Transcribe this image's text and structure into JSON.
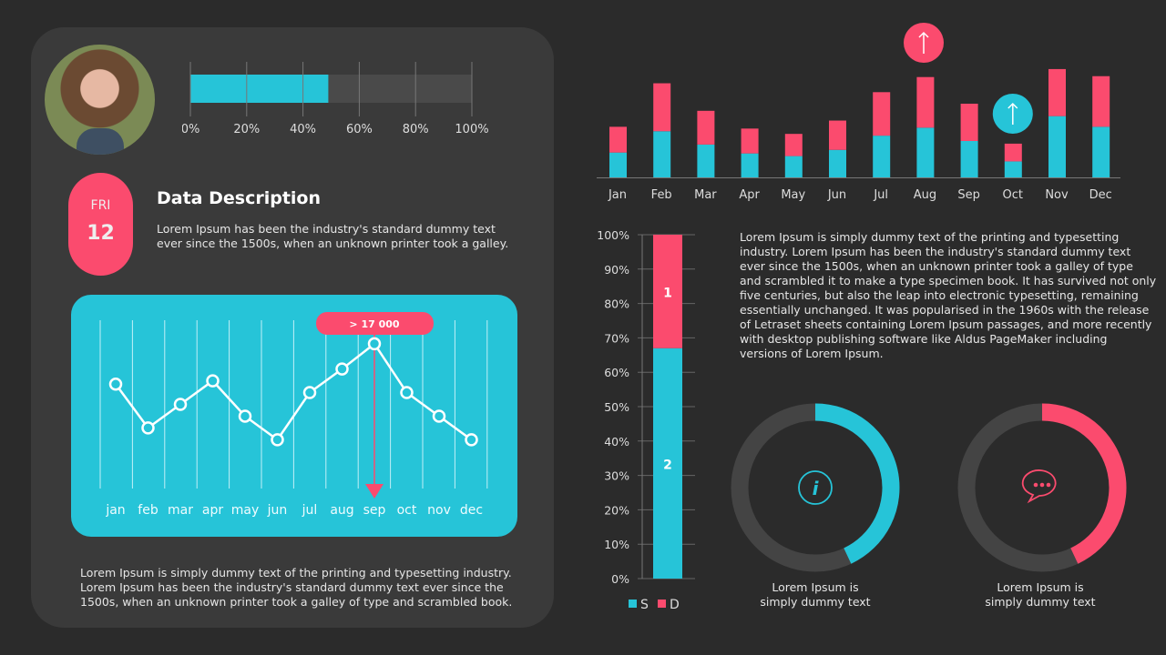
{
  "colors": {
    "background": "#2b2b2b",
    "panel": "#3a3a3a",
    "teal": "#26c4d8",
    "pink": "#fb4b6e",
    "track": "#444444"
  },
  "profile": {
    "photo": "woman-portrait-photo"
  },
  "progress": {
    "value_percent": 49,
    "ticks": [
      "0%",
      "20%",
      "40%",
      "60%",
      "80%",
      "100%"
    ]
  },
  "date": {
    "day": "FRI",
    "number": "12"
  },
  "description": {
    "title": "Data Description",
    "text_lines": [
      "Lorem Ipsum has been the industry's standard dummy text",
      "ever since the 1500s, when an unknown printer took a galley."
    ]
  },
  "bottom_text_lines": [
    "Lorem Ipsum is simply dummy text of the printing and typesetting industry.",
    "Lorem Ipsum has been the industry's standard dummy text ever since the",
    "1500s, when an unknown printer took a galley of type and scrambled book."
  ],
  "chart_data": [
    {
      "type": "line",
      "categories": [
        "jan",
        "feb",
        "mar",
        "apr",
        "may",
        "jun",
        "jul",
        "aug",
        "sep",
        "oct",
        "nov",
        "dec"
      ],
      "values": [
        62,
        36,
        50,
        64,
        43,
        29,
        57,
        71,
        86,
        57,
        43,
        29
      ],
      "ylim": [
        0,
        100
      ],
      "grid": "vertical",
      "annotation": {
        "category": "sep",
        "label": "> 17 000"
      }
    },
    {
      "type": "bar",
      "stacked": true,
      "categories": [
        "Jan",
        "Feb",
        "Mar",
        "Apr",
        "May",
        "Jun",
        "Jul",
        "Aug",
        "Sep",
        "Oct",
        "Nov",
        "Dec"
      ],
      "series": [
        {
          "color": "#26c4d8",
          "values": [
            28,
            52,
            37,
            27,
            24,
            31,
            47,
            56,
            41,
            18,
            69,
            57
          ]
        },
        {
          "color": "#fb4b6e",
          "values": [
            29,
            54,
            38,
            28,
            25,
            33,
            49,
            57,
            42,
            20,
            53,
            57
          ]
        }
      ],
      "ylim": [
        0,
        125
      ],
      "markers": [
        {
          "category": "Aug",
          "icon": "arrow-up-icon",
          "color": "#fb4b6e"
        },
        {
          "category": "Oct",
          "icon": "arrow-up-icon",
          "color": "#26c4d8"
        }
      ]
    },
    {
      "type": "bar",
      "stacked": true,
      "categories": [
        ""
      ],
      "series": [
        {
          "name": "S",
          "label": "2",
          "color": "#26c4d8",
          "values": [
            67
          ]
        },
        {
          "name": "D",
          "label": "1",
          "color": "#fb4b6e",
          "values": [
            33
          ]
        }
      ],
      "ylim": [
        0,
        100
      ],
      "yticks": [
        "0%",
        "10%",
        "20%",
        "30%",
        "40%",
        "50%",
        "60%",
        "70%",
        "80%",
        "90%",
        "100%"
      ],
      "legend": "bottom"
    },
    {
      "type": "pie",
      "donut": true,
      "values": [
        43,
        57
      ],
      "color": "#26c4d8",
      "icon": "info-icon",
      "caption_lines": [
        "Lorem Ipsum is",
        "simply dummy text"
      ]
    },
    {
      "type": "pie",
      "donut": true,
      "values": [
        43,
        57
      ],
      "color": "#fb4b6e",
      "icon": "chat-bubble-icon",
      "caption_lines": [
        "Lorem Ipsum is",
        "simply dummy text"
      ]
    }
  ],
  "paragraph_lines": [
    "Lorem Ipsum is simply dummy text of the printing and typesetting",
    "industry. Lorem Ipsum has been the industry's standard dummy text",
    "ever since the 1500s, when an unknown printer took a galley of type",
    "and scrambled it to make a type specimen book. It has survived not only",
    "five centuries, but also the leap into electronic typesetting, remaining",
    "essentially unchanged.  It was popularised  in the 1960s with the release",
    "of Letraset sheets containing Lorem Ipsum passages, and more recently",
    "with desktop publishing software like Aldus PageMaker including",
    "versions of Lorem Ipsum."
  ]
}
